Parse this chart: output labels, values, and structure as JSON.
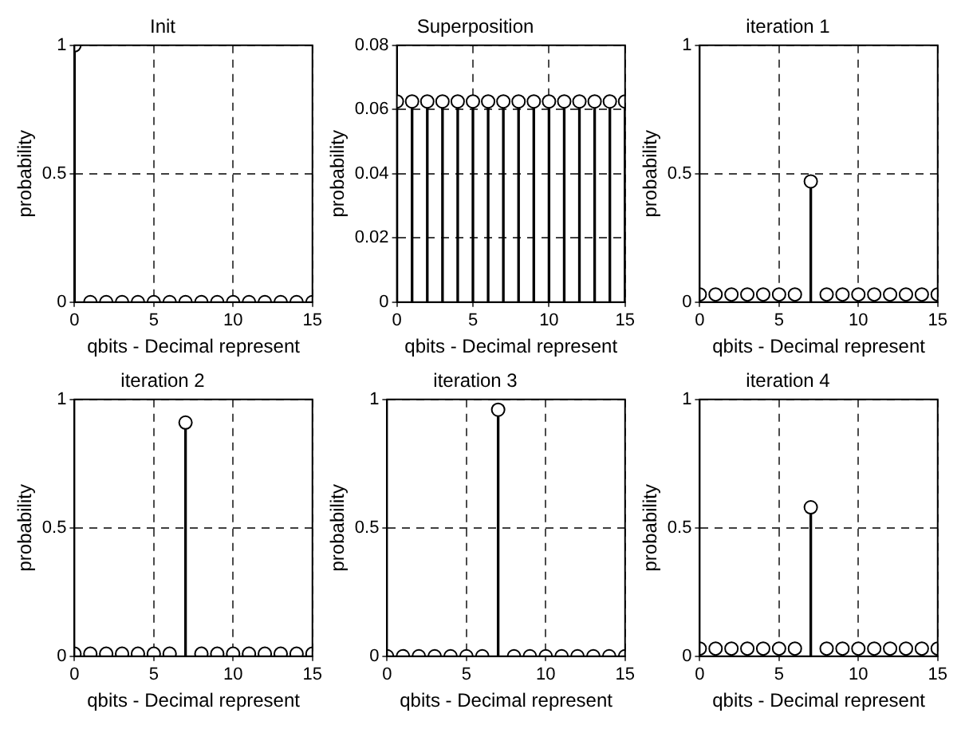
{
  "chart_data": [
    {
      "type": "lollipop",
      "title": "Init",
      "xlabel": "qbits - Decimal represent",
      "ylabel": "probability",
      "x": [
        0,
        1,
        2,
        3,
        4,
        5,
        6,
        7,
        8,
        9,
        10,
        11,
        12,
        13,
        14,
        15
      ],
      "values": [
        1,
        0,
        0,
        0,
        0,
        0,
        0,
        0,
        0,
        0,
        0,
        0,
        0,
        0,
        0,
        0
      ],
      "color": "#000000",
      "xlim": [
        0,
        15
      ],
      "xticks": [
        0,
        5,
        10,
        15
      ],
      "ylim": [
        0,
        1
      ],
      "yticks": [
        0,
        0.5,
        1
      ],
      "grid": true,
      "marker": "circle"
    },
    {
      "type": "lollipop",
      "title": "Superposition",
      "xlabel": "qbits - Decimal represent",
      "ylabel": "probability",
      "x": [
        0,
        1,
        2,
        3,
        4,
        5,
        6,
        7,
        8,
        9,
        10,
        11,
        12,
        13,
        14,
        15
      ],
      "values": [
        0.0625,
        0.0625,
        0.0625,
        0.0625,
        0.0625,
        0.0625,
        0.0625,
        0.0625,
        0.0625,
        0.0625,
        0.0625,
        0.0625,
        0.0625,
        0.0625,
        0.0625,
        0.0625
      ],
      "color": "#000000",
      "xlim": [
        0,
        15
      ],
      "xticks": [
        0,
        5,
        10,
        15
      ],
      "ylim": [
        0,
        0.08
      ],
      "yticks": [
        0,
        0.02,
        0.04,
        0.06,
        0.08
      ],
      "grid": true,
      "marker": "circle"
    },
    {
      "type": "lollipop",
      "title": "iteration 1",
      "xlabel": "qbits - Decimal represent",
      "ylabel": "probability",
      "x": [
        0,
        1,
        2,
        3,
        4,
        5,
        6,
        7,
        8,
        9,
        10,
        11,
        12,
        13,
        14,
        15
      ],
      "values": [
        0.03,
        0.03,
        0.03,
        0.03,
        0.03,
        0.03,
        0.03,
        0.47,
        0.03,
        0.03,
        0.03,
        0.03,
        0.03,
        0.03,
        0.03,
        0.03
      ],
      "color": "#000000",
      "xlim": [
        0,
        15
      ],
      "xticks": [
        0,
        5,
        10,
        15
      ],
      "ylim": [
        0,
        1
      ],
      "yticks": [
        0,
        0.5,
        1
      ],
      "grid": true,
      "marker": "circle"
    },
    {
      "type": "lollipop",
      "title": "iteration 2",
      "xlabel": "qbits - Decimal represent",
      "ylabel": "probability",
      "x": [
        0,
        1,
        2,
        3,
        4,
        5,
        6,
        7,
        8,
        9,
        10,
        11,
        12,
        13,
        14,
        15
      ],
      "values": [
        0.01,
        0.01,
        0.01,
        0.01,
        0.01,
        0.01,
        0.01,
        0.91,
        0.01,
        0.01,
        0.01,
        0.01,
        0.01,
        0.01,
        0.01,
        0.01
      ],
      "color": "#000000",
      "xlim": [
        0,
        15
      ],
      "xticks": [
        0,
        5,
        10,
        15
      ],
      "ylim": [
        0,
        1
      ],
      "yticks": [
        0,
        0.5,
        1
      ],
      "grid": true,
      "marker": "circle"
    },
    {
      "type": "lollipop",
      "title": "iteration 3",
      "xlabel": "qbits - Decimal represent",
      "ylabel": "probability",
      "x": [
        0,
        1,
        2,
        3,
        4,
        5,
        6,
        7,
        8,
        9,
        10,
        11,
        12,
        13,
        14,
        15
      ],
      "values": [
        0,
        0,
        0,
        0,
        0,
        0,
        0,
        0.96,
        0,
        0,
        0,
        0,
        0,
        0,
        0,
        0
      ],
      "color": "#000000",
      "xlim": [
        0,
        15
      ],
      "xticks": [
        0,
        5,
        10,
        15
      ],
      "ylim": [
        0,
        1
      ],
      "yticks": [
        0,
        0.5,
        1
      ],
      "grid": true,
      "marker": "circle"
    },
    {
      "type": "lollipop",
      "title": "iteration 4",
      "xlabel": "qbits - Decimal represent",
      "ylabel": "probability",
      "x": [
        0,
        1,
        2,
        3,
        4,
        5,
        6,
        7,
        8,
        9,
        10,
        11,
        12,
        13,
        14,
        15
      ],
      "values": [
        0.03,
        0.03,
        0.03,
        0.03,
        0.03,
        0.03,
        0.03,
        0.58,
        0.03,
        0.03,
        0.03,
        0.03,
        0.03,
        0.03,
        0.03,
        0.03
      ],
      "color": "#000000",
      "xlim": [
        0,
        15
      ],
      "xticks": [
        0,
        5,
        10,
        15
      ],
      "ylim": [
        0,
        1
      ],
      "yticks": [
        0,
        0.5,
        1
      ],
      "grid": true,
      "marker": "circle"
    }
  ]
}
